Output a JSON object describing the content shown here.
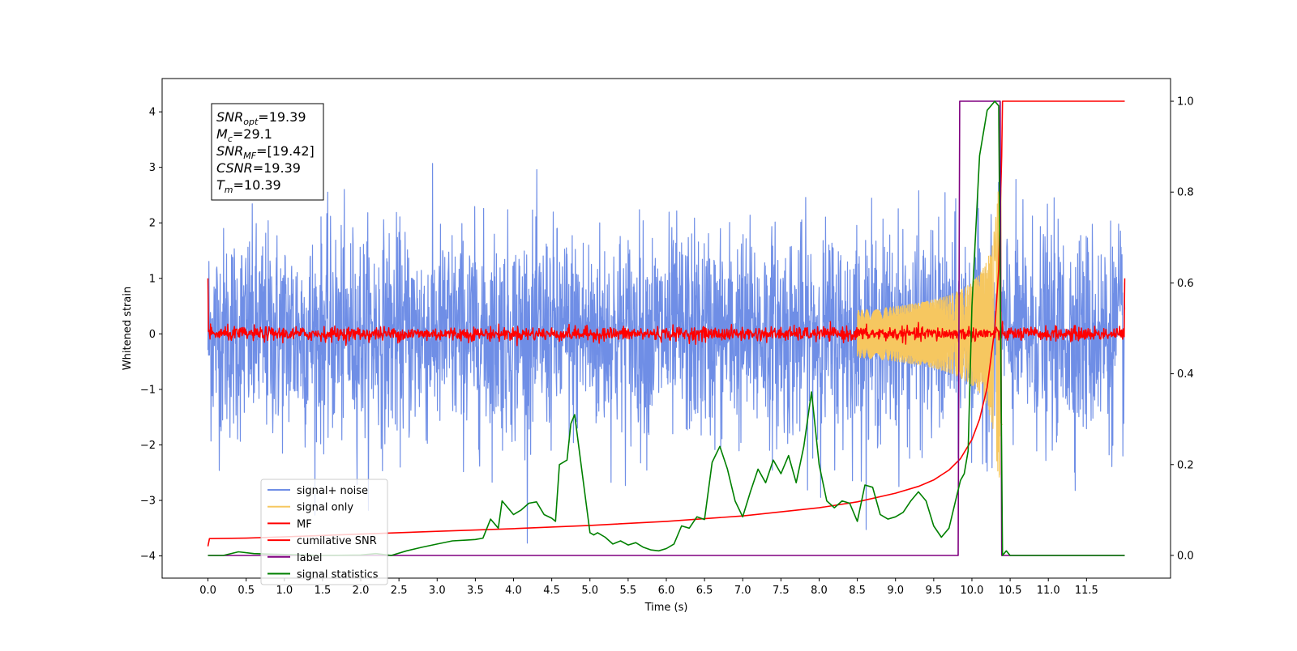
{
  "chart_data": {
    "type": "line",
    "xlabel": "Time (s)",
    "ylabel": "Whitened strain",
    "xlim": [
      -0.6,
      12.6
    ],
    "ylim": [
      -4.4,
      4.6
    ],
    "y2lim": [
      -0.05,
      1.05
    ],
    "x_ticks": [
      0.0,
      0.5,
      1.0,
      1.5,
      2.0,
      2.5,
      3.0,
      3.5,
      4.0,
      4.5,
      5.0,
      5.5,
      6.0,
      6.5,
      7.0,
      7.5,
      8.0,
      8.5,
      9.0,
      9.5,
      10.0,
      10.5,
      11.0,
      11.5
    ],
    "x_tick_labels": [
      "0.0",
      "0.5",
      "1.0",
      "1.5",
      "2.0",
      "2.5",
      "3.0",
      "3.5",
      "4.0",
      "4.5",
      "5.0",
      "5.5",
      "6.0",
      "6.5",
      "7.0",
      "7.5",
      "8.0",
      "8.5",
      "9.0",
      "9.5",
      "10.0",
      "10.5",
      "11.0",
      "11.5"
    ],
    "y_ticks": [
      -4,
      -3,
      -2,
      -1,
      0,
      1,
      2,
      3,
      4
    ],
    "y_tick_labels": [
      "−4",
      "−3",
      "−2",
      "−1",
      "0",
      "1",
      "2",
      "3",
      "4"
    ],
    "y2_ticks": [
      0.0,
      0.2,
      0.4,
      0.6,
      0.8,
      1.0
    ],
    "y2_tick_labels": [
      "0.0",
      "0.2",
      "0.4",
      "0.6",
      "0.8",
      "1.0"
    ],
    "legend_position": "lower-left",
    "grid": false,
    "annotation": {
      "lines": [
        {
          "main": "SNR",
          "sub": "opt",
          "rest": "=19.39"
        },
        {
          "main": "M",
          "sub": "c",
          "rest": "=29.1"
        },
        {
          "main": "SNR",
          "sub": "MF",
          "rest": "=[19.42]"
        },
        {
          "main": "CSNR",
          "sub": "",
          "rest": "=19.39"
        },
        {
          "main": "T",
          "sub": "m",
          "rest": "=10.39"
        }
      ]
    },
    "series": [
      {
        "name": "signal+ noise",
        "color": "#6f8ee6",
        "axis": "left",
        "kind": "noise",
        "x_range": [
          0.0,
          12.0
        ],
        "typical_envelope": [
          -1.5,
          1.5
        ],
        "peak_range": [
          -3.9,
          3.4
        ]
      },
      {
        "name": "signal only",
        "color": "#f6c760",
        "axis": "left",
        "kind": "chirp",
        "x_range": [
          8.5,
          10.4
        ],
        "peak_amplitude": 2.6,
        "merger_time": 10.39
      },
      {
        "name": "MF",
        "color": "#ff0000",
        "axis": "left",
        "kind": "noise",
        "x_range": [
          0.0,
          12.0
        ],
        "typical_envelope": [
          -0.1,
          0.1
        ],
        "start_value": 1.0,
        "end_value": 1.0
      },
      {
        "name": "cumilative SNR",
        "color": "#ff0000",
        "axis": "right",
        "kind": "line",
        "x": [
          0.0,
          0.02,
          0.5,
          1.0,
          2.0,
          3.0,
          4.0,
          5.0,
          6.0,
          7.0,
          8.0,
          8.5,
          9.0,
          9.3,
          9.5,
          9.7,
          9.85,
          10.0,
          10.1,
          10.2,
          10.3,
          10.35,
          10.39,
          10.4,
          12.0
        ],
        "y": [
          0.02,
          0.037,
          0.038,
          0.041,
          0.047,
          0.053,
          0.059,
          0.066,
          0.075,
          0.087,
          0.105,
          0.118,
          0.137,
          0.152,
          0.166,
          0.188,
          0.213,
          0.255,
          0.3,
          0.37,
          0.5,
          0.63,
          0.88,
          1.0,
          1.0
        ]
      },
      {
        "name": "label",
        "color": "#800080",
        "axis": "right",
        "kind": "line",
        "x": [
          0.0,
          9.82,
          9.84,
          10.37,
          10.39,
          12.0
        ],
        "y": [
          0.0,
          0.0,
          1.0,
          1.0,
          0.0,
          0.0
        ]
      },
      {
        "name": "signal statistics",
        "color": "#008000",
        "axis": "right",
        "kind": "line",
        "x": [
          0.0,
          0.2,
          0.4,
          0.6,
          0.8,
          1.0,
          1.5,
          2.0,
          2.2,
          2.4,
          2.6,
          2.8,
          3.0,
          3.2,
          3.4,
          3.5,
          3.6,
          3.7,
          3.8,
          3.85,
          3.9,
          4.0,
          4.1,
          4.2,
          4.3,
          4.4,
          4.5,
          4.55,
          4.6,
          4.7,
          4.75,
          4.8,
          4.9,
          5.0,
          5.05,
          5.1,
          5.2,
          5.3,
          5.4,
          5.5,
          5.6,
          5.7,
          5.8,
          5.9,
          6.0,
          6.1,
          6.2,
          6.3,
          6.4,
          6.5,
          6.6,
          6.7,
          6.8,
          6.9,
          7.0,
          7.1,
          7.2,
          7.3,
          7.4,
          7.5,
          7.6,
          7.7,
          7.8,
          7.9,
          8.0,
          8.1,
          8.2,
          8.3,
          8.4,
          8.5,
          8.6,
          8.7,
          8.8,
          8.9,
          9.0,
          9.1,
          9.2,
          9.3,
          9.4,
          9.5,
          9.6,
          9.7,
          9.8,
          9.85,
          9.9,
          9.95,
          10.0,
          10.1,
          10.2,
          10.3,
          10.35,
          10.4,
          10.45,
          10.5,
          11.0,
          12.0
        ],
        "y": [
          0.0,
          0.0,
          0.008,
          0.004,
          0.003,
          0.002,
          0.0,
          0.001,
          0.004,
          0.0,
          0.01,
          0.018,
          0.025,
          0.032,
          0.034,
          0.035,
          0.038,
          0.08,
          0.06,
          0.12,
          0.11,
          0.09,
          0.1,
          0.115,
          0.118,
          0.09,
          0.082,
          0.075,
          0.2,
          0.21,
          0.29,
          0.31,
          0.18,
          0.05,
          0.045,
          0.05,
          0.04,
          0.025,
          0.032,
          0.023,
          0.028,
          0.018,
          0.012,
          0.01,
          0.015,
          0.025,
          0.065,
          0.06,
          0.085,
          0.079,
          0.205,
          0.24,
          0.19,
          0.12,
          0.085,
          0.14,
          0.19,
          0.16,
          0.21,
          0.18,
          0.22,
          0.16,
          0.24,
          0.36,
          0.2,
          0.12,
          0.105,
          0.12,
          0.115,
          0.075,
          0.155,
          0.15,
          0.09,
          0.08,
          0.085,
          0.095,
          0.12,
          0.14,
          0.12,
          0.065,
          0.04,
          0.06,
          0.13,
          0.165,
          0.18,
          0.23,
          0.55,
          0.88,
          0.98,
          1.0,
          0.99,
          0.0,
          0.01,
          0.0,
          0.0,
          0.0
        ]
      }
    ]
  }
}
